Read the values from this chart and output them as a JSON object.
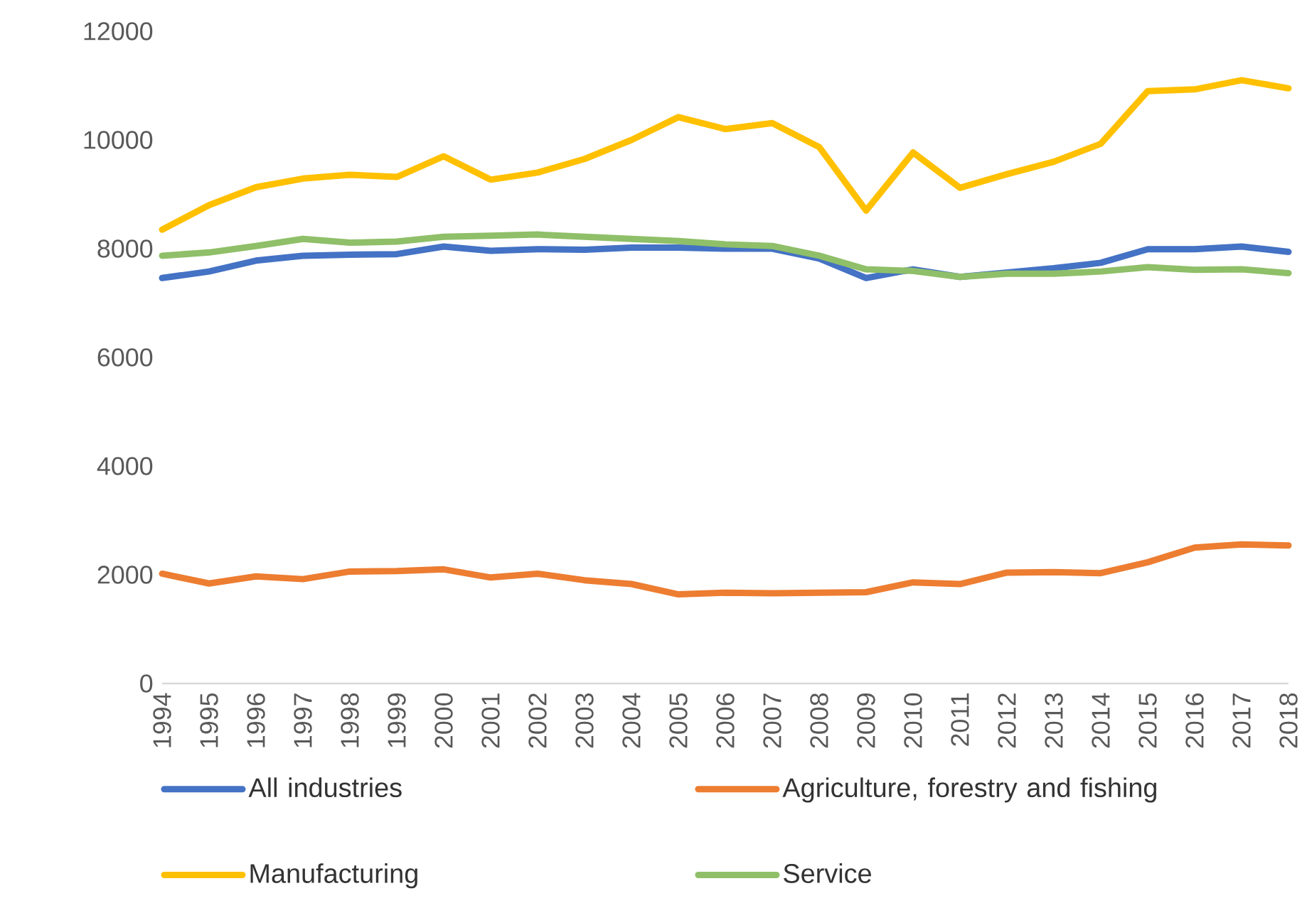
{
  "chart_data": {
    "type": "line",
    "categories": [
      "1994",
      "1995",
      "1996",
      "1997",
      "1998",
      "1999",
      "2000",
      "2001",
      "2002",
      "2003",
      "2004",
      "2005",
      "2006",
      "2007",
      "2008",
      "2009",
      "2010",
      "2011",
      "2012",
      "2013",
      "2014",
      "2015",
      "2016",
      "2017",
      "2018"
    ],
    "series": [
      {
        "name": "All industries",
        "color": "#4472c4",
        "values": [
          7460,
          7580,
          7780,
          7870,
          7890,
          7900,
          8040,
          7960,
          7990,
          7980,
          8020,
          8020,
          8000,
          8000,
          7820,
          7460,
          7620,
          7480,
          7560,
          7640,
          7740,
          7990,
          7990,
          8040,
          7940
        ]
      },
      {
        "name": "Agriculture, forestry and fishing",
        "color": "#ed7d31",
        "values": [
          2020,
          1840,
          1970,
          1920,
          2060,
          2070,
          2100,
          1950,
          2020,
          1900,
          1830,
          1640,
          1670,
          1660,
          1670,
          1680,
          1860,
          1830,
          2040,
          2050,
          2030,
          2230,
          2500,
          2560,
          2540
        ]
      },
      {
        "name": "Manufacturing",
        "color": "#ffc000",
        "values": [
          8350,
          8800,
          9130,
          9290,
          9360,
          9320,
          9700,
          9270,
          9400,
          9650,
          10000,
          10420,
          10200,
          10310,
          9870,
          8700,
          9770,
          9120,
          9370,
          9600,
          9930,
          10900,
          10930,
          11100,
          10950
        ]
      },
      {
        "name": "Service",
        "color": "#8fbf68",
        "values": [
          7870,
          7930,
          8050,
          8180,
          8110,
          8130,
          8220,
          8240,
          8260,
          8220,
          8180,
          8140,
          8080,
          8050,
          7870,
          7620,
          7590,
          7480,
          7540,
          7540,
          7580,
          7660,
          7610,
          7620,
          7550
        ]
      }
    ],
    "ylim": [
      0,
      12000
    ],
    "yticks": [
      0,
      2000,
      4000,
      6000,
      8000,
      10000,
      12000
    ],
    "grid": false,
    "legend": "bottom",
    "marker": "none",
    "line_style": "solid"
  }
}
